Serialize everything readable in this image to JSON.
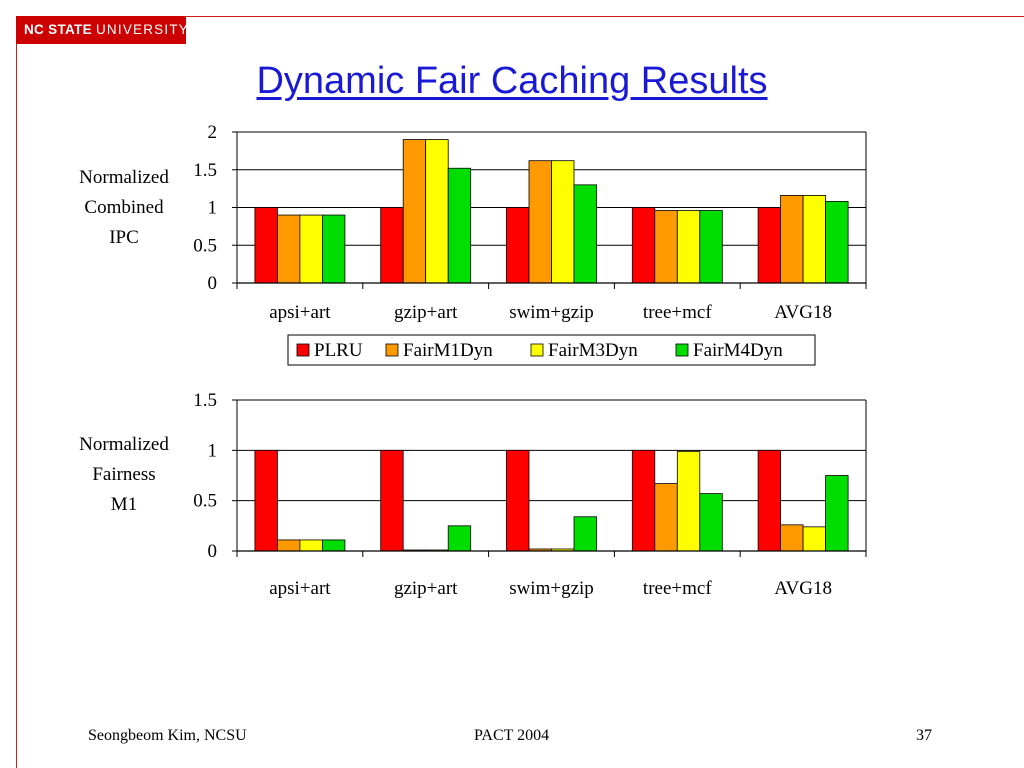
{
  "logo": {
    "bold": "NC STATE",
    "rest": "UNIVERSITY"
  },
  "title": "Dynamic Fair Caching Results",
  "footer": {
    "left": "Seongbeom Kim, NCSU",
    "center": "PACT 2004",
    "right": "37"
  },
  "colors": {
    "PLRU": "#ff0000",
    "FairM1Dyn": "#ff9900",
    "FairM3Dyn": "#ffff00",
    "FairM4Dyn": "#00dd00",
    "title": "#1a1ad6",
    "logo_bg": "#cc0000"
  },
  "chart_data": [
    {
      "type": "bar",
      "ylabel_lines": [
        "Normalized",
        "Combined",
        "IPC"
      ],
      "categories": [
        "apsi+art",
        "gzip+art",
        "swim+gzip",
        "tree+mcf",
        "AVG18"
      ],
      "ylim": [
        0,
        2
      ],
      "yticks": [
        "0",
        "0.5",
        "1",
        "1.5",
        "2"
      ],
      "grid": true,
      "legend": "bottom",
      "series": [
        {
          "name": "PLRU",
          "values": [
            1.0,
            1.0,
            1.0,
            1.0,
            1.0
          ]
        },
        {
          "name": "FairM1Dyn",
          "values": [
            0.9,
            1.9,
            1.62,
            0.96,
            1.16
          ]
        },
        {
          "name": "FairM3Dyn",
          "values": [
            0.9,
            1.9,
            1.62,
            0.96,
            1.16
          ]
        },
        {
          "name": "FairM4Dyn",
          "values": [
            0.9,
            1.52,
            1.3,
            0.96,
            1.08
          ]
        }
      ]
    },
    {
      "type": "bar",
      "ylabel_lines": [
        "Normalized",
        "Fairness",
        "M1"
      ],
      "categories": [
        "apsi+art",
        "gzip+art",
        "swim+gzip",
        "tree+mcf",
        "AVG18"
      ],
      "ylim": [
        0,
        1.5
      ],
      "yticks": [
        "0",
        "0.5",
        "1",
        "1.5"
      ],
      "grid": true,
      "legend": "none",
      "series": [
        {
          "name": "PLRU",
          "values": [
            1.0,
            1.0,
            1.0,
            1.0,
            1.0
          ]
        },
        {
          "name": "FairM1Dyn",
          "values": [
            0.11,
            0.01,
            0.02,
            0.67,
            0.26
          ]
        },
        {
          "name": "FairM3Dyn",
          "values": [
            0.11,
            0.01,
            0.02,
            0.99,
            0.24
          ]
        },
        {
          "name": "FairM4Dyn",
          "values": [
            0.11,
            0.25,
            0.34,
            0.57,
            0.75
          ]
        }
      ]
    }
  ]
}
